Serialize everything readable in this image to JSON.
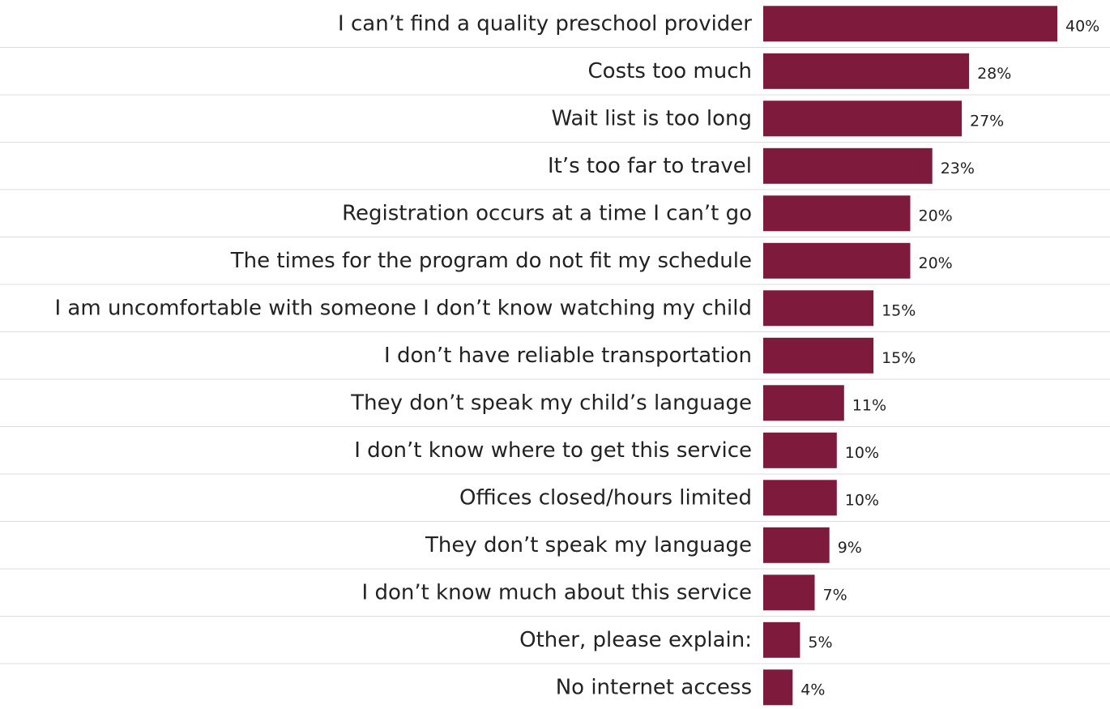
{
  "chart_data": {
    "type": "bar",
    "orientation": "horizontal",
    "categories": [
      "I can’t find a quality preschool provider",
      "Costs too much",
      "Wait list is too long",
      "It’s too far to travel",
      "Registration occurs at a time I can’t go",
      "The times for the program do not fit my schedule",
      "I am uncomfortable with someone I don’t know watching my child",
      "I don’t have reliable transportation",
      "They don’t speak my child’s language",
      "I don’t know where to get this service",
      "Offices closed/hours limited",
      "They don’t speak my language",
      "I don’t know much about this service",
      "Other, please explain:",
      "No internet access"
    ],
    "values": [
      40,
      28,
      27,
      23,
      20,
      20,
      15,
      15,
      11,
      10,
      10,
      9,
      7,
      5,
      4
    ],
    "value_labels": [
      "40%",
      "28%",
      "27%",
      "23%",
      "20%",
      "20%",
      "15%",
      "15%",
      "11%",
      "10%",
      "10%",
      "9%",
      "7%",
      "5%",
      "4%"
    ],
    "unit": "%",
    "title": "",
    "xlabel": "",
    "ylabel": "",
    "xlim": [
      0,
      40
    ],
    "grid": false,
    "legend": "none",
    "bar_color": "#7e1a3c",
    "separator_color": "#dcdcdc",
    "text_color": "#222222"
  }
}
